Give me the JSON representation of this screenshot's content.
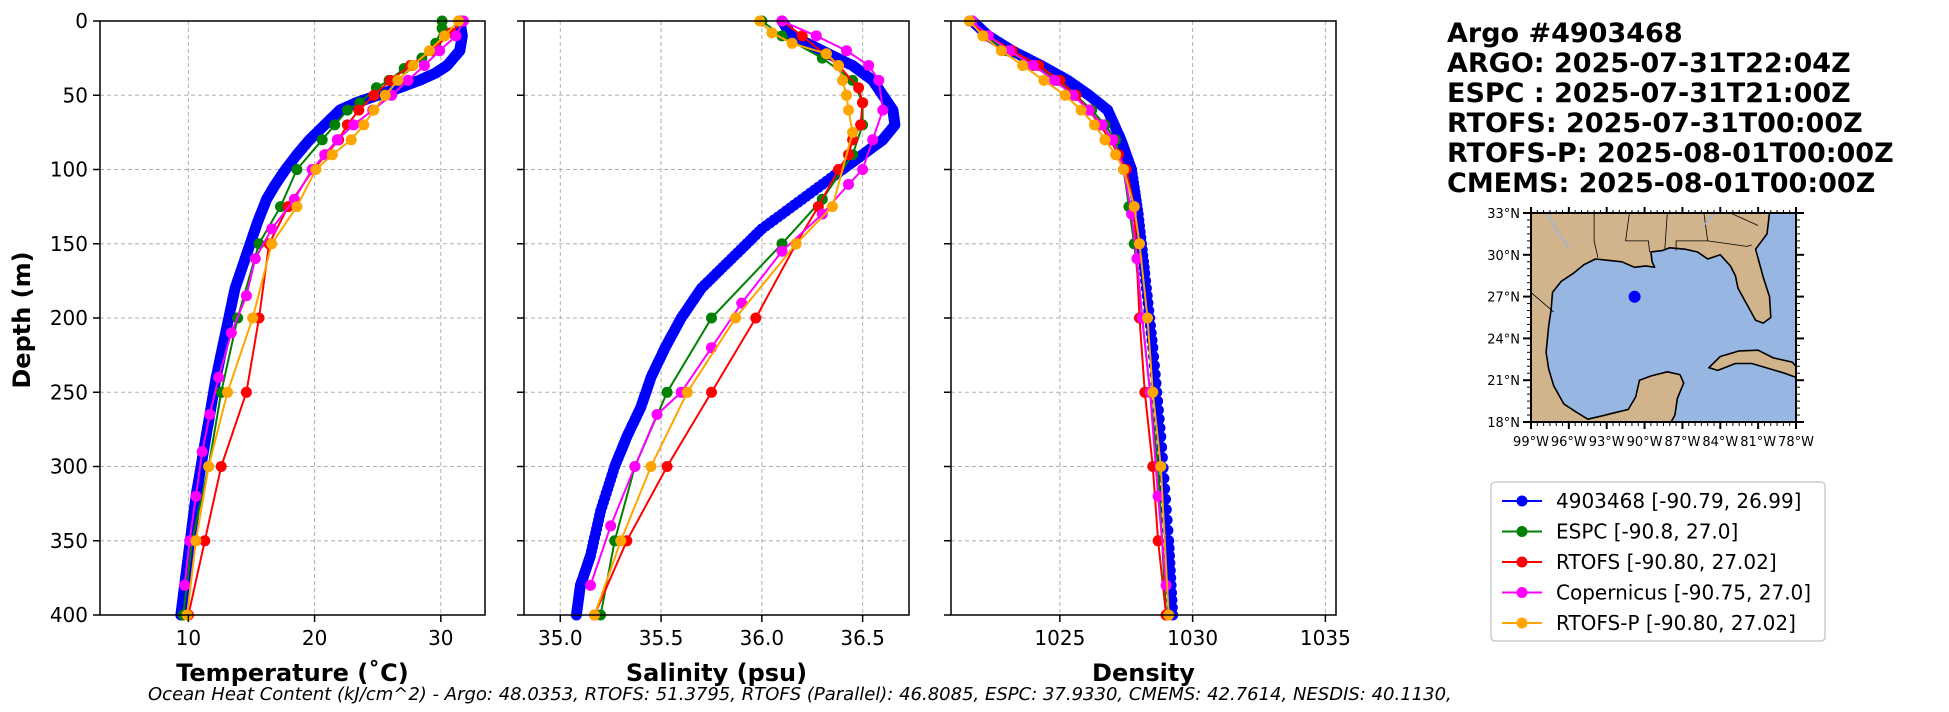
{
  "title_lines": [
    "Argo #4903468",
    "ARGO: 2025-07-31T22:04Z",
    "ESPC : 2025-07-31T21:00Z",
    "RTOFS: 2025-07-31T00:00Z",
    "RTOFS-P: 2025-08-01T00:00Z",
    "CMEMS: 2025-08-01T00:00Z"
  ],
  "footer": "Ocean Heat Content (kJ/cm^2) - Argo: 48.0353,  RTOFS: 51.3795,  RTOFS (Parallel): 46.8085,  ESPC: 37.9330,  CMEMS: 42.7614,  NESDIS: 40.1130,",
  "colors": {
    "argo": "#0000ff",
    "espc": "#008000",
    "rtofs": "#ff0000",
    "copernicus": "#ff00ff",
    "rtofs_p": "#ffa500",
    "ocean": "#98b6e2",
    "land": "#d2b48c"
  },
  "chart_data": [
    {
      "type": "line",
      "title": "",
      "xlabel": "Temperature (˚C)",
      "ylabel": "Depth (m)",
      "xlim": [
        3,
        33.5
      ],
      "ylim": [
        400,
        0
      ],
      "xticks": [
        "10",
        "20",
        "30"
      ],
      "xtick_values": [
        10,
        20,
        30
      ],
      "yticks": [
        "0",
        "50",
        "100",
        "150",
        "200",
        "250",
        "300",
        "350",
        "400"
      ],
      "ytick_values": [
        0,
        50,
        100,
        150,
        200,
        250,
        300,
        350,
        400
      ],
      "series": [
        {
          "name": "4903468 [-90.79, 26.99]",
          "color_key": "argo",
          "dense": true,
          "x": [
            31.5,
            31.7,
            31.5,
            30.5,
            29.6,
            28.3,
            26.7,
            25.0,
            23.3,
            22.0,
            20.8,
            19.6,
            18.6,
            17.7,
            16.9,
            16.2,
            15.5,
            14.9,
            14.3,
            13.7,
            13.2,
            12.7,
            12.2,
            11.8,
            11.4,
            11.0,
            10.6,
            10.3,
            10.0,
            9.7,
            9.4
          ],
          "y": [
            0,
            10,
            20,
            30,
            35,
            40,
            45,
            50,
            55,
            60,
            70,
            80,
            90,
            100,
            110,
            120,
            135,
            150,
            165,
            180,
            200,
            220,
            240,
            260,
            280,
            300,
            320,
            340,
            360,
            380,
            400
          ]
        },
        {
          "name": "ESPC [-90.8, 27.0]",
          "color_key": "espc",
          "x": [
            30.1,
            30.1,
            29.6,
            28.5,
            27.1,
            25.9,
            24.9,
            23.6,
            22.6,
            21.6,
            20.6,
            18.6,
            17.3,
            15.6,
            13.9,
            12.6,
            11.6,
            10.3,
            9.6
          ],
          "y": [
            0,
            5,
            15,
            25,
            32,
            40,
            45,
            55,
            60,
            70,
            80,
            100,
            125,
            150,
            200,
            250,
            300,
            350,
            400
          ]
        },
        {
          "name": "RTOFS [-90.80, 27.02]",
          "color_key": "rtofs",
          "x": [
            31.7,
            30.8,
            29.3,
            27.6,
            26.0,
            24.7,
            23.5,
            22.6,
            21.9,
            20.9,
            19.9,
            17.9,
            16.4,
            15.6,
            14.6,
            12.6,
            11.3,
            10.0
          ],
          "y": [
            0,
            8,
            20,
            30,
            40,
            50,
            60,
            70,
            80,
            90,
            100,
            125,
            150,
            200,
            250,
            300,
            350,
            400
          ]
        },
        {
          "name": "Copernicus [-90.75, 27.0]",
          "color_key": "copernicus",
          "x": [
            31.8,
            31.2,
            29.9,
            28.7,
            27.4,
            26.1,
            24.6,
            23.1,
            21.8,
            20.8,
            19.8,
            18.4,
            16.6,
            15.3,
            14.6,
            13.4,
            12.4,
            11.7,
            11.1,
            10.6,
            10.1,
            9.7
          ],
          "y": [
            0,
            10,
            20,
            30,
            40,
            50,
            60,
            70,
            80,
            90,
            100,
            120,
            140,
            160,
            185,
            210,
            240,
            265,
            290,
            320,
            350,
            380
          ]
        },
        {
          "name": "RTOFS-P [-90.80, 27.02]",
          "color_key": "rtofs_p",
          "x": [
            31.4,
            30.3,
            29.1,
            27.8,
            26.6,
            25.6,
            24.7,
            23.9,
            22.9,
            21.4,
            20.1,
            18.6,
            16.6,
            15.1,
            13.1,
            11.6,
            10.6,
            9.9
          ],
          "y": [
            0,
            10,
            20,
            30,
            40,
            50,
            60,
            70,
            80,
            90,
            100,
            125,
            150,
            200,
            250,
            300,
            350,
            400
          ]
        }
      ]
    },
    {
      "type": "line",
      "title": "",
      "xlabel": "Salinity (psu)",
      "ylabel": "",
      "xlim": [
        34.82,
        36.73
      ],
      "ylim": [
        400,
        0
      ],
      "xticks": [
        "35.0",
        "35.5",
        "36.0",
        "36.5"
      ],
      "xtick_values": [
        35.0,
        35.5,
        36.0,
        36.5
      ],
      "series": [
        {
          "name": "4903468 [-90.79, 26.99]",
          "color_key": "argo",
          "dense": true,
          "x": [
            36.1,
            36.15,
            36.3,
            36.45,
            36.55,
            36.6,
            36.65,
            36.66,
            36.6,
            36.5,
            36.4,
            36.2,
            36.0,
            35.85,
            35.7,
            35.6,
            35.52,
            35.45,
            35.4,
            35.33,
            35.27,
            35.2,
            35.15,
            35.1,
            35.08
          ],
          "y": [
            0,
            10,
            20,
            30,
            40,
            50,
            60,
            70,
            80,
            90,
            100,
            120,
            140,
            160,
            180,
            200,
            220,
            240,
            260,
            280,
            300,
            330,
            360,
            380,
            400
          ]
        },
        {
          "name": "ESPC [-90.8, 27.0]",
          "color_key": "espc",
          "x": [
            36.0,
            36.1,
            36.3,
            36.45,
            36.5,
            36.5,
            36.45,
            36.3,
            36.1,
            35.75,
            35.53,
            35.37,
            35.27,
            35.2
          ],
          "y": [
            0,
            10,
            25,
            40,
            55,
            70,
            90,
            120,
            150,
            200,
            250,
            300,
            350,
            400
          ]
        },
        {
          "name": "RTOFS [-90.80, 27.02]",
          "color_key": "rtofs",
          "x": [
            36.1,
            36.2,
            36.38,
            36.48,
            36.5,
            36.49,
            36.45,
            36.43,
            36.38,
            36.28,
            36.17,
            35.97,
            35.75,
            35.53,
            35.33,
            35.17
          ],
          "y": [
            0,
            10,
            30,
            45,
            55,
            70,
            80,
            90,
            100,
            125,
            150,
            200,
            250,
            300,
            350,
            400
          ]
        },
        {
          "name": "Copernicus [-90.75, 27.0]",
          "color_key": "copernicus",
          "x": [
            36.1,
            36.27,
            36.42,
            36.53,
            36.58,
            36.6,
            36.55,
            36.5,
            36.43,
            36.3,
            36.1,
            35.9,
            35.75,
            35.6,
            35.48,
            35.37,
            35.25,
            35.15
          ],
          "y": [
            0,
            10,
            20,
            30,
            40,
            60,
            80,
            100,
            110,
            130,
            155,
            190,
            220,
            250,
            265,
            300,
            340,
            380
          ]
        },
        {
          "name": "RTOFS-P [-90.80, 27.02]",
          "color_key": "rtofs_p",
          "x": [
            35.99,
            36.05,
            36.15,
            36.32,
            36.38,
            36.4,
            36.42,
            36.43,
            36.45,
            36.35,
            36.17,
            35.87,
            35.63,
            35.45,
            35.3,
            35.17
          ],
          "y": [
            0,
            8,
            15,
            22,
            30,
            40,
            50,
            60,
            75,
            125,
            150,
            200,
            250,
            300,
            350,
            400
          ]
        }
      ]
    },
    {
      "type": "line",
      "title": "",
      "xlabel": "Density",
      "ylabel": "",
      "xlim": [
        1020.9,
        1035.4
      ],
      "ylim": [
        400,
        0
      ],
      "xticks": [
        "1025",
        "1030",
        "1035"
      ],
      "xtick_values": [
        1025,
        1030,
        1035
      ],
      "series": [
        {
          "name": "4903468 [-90.79, 26.99]",
          "color_key": "argo",
          "dense": true,
          "x": [
            1021.7,
            1022.3,
            1023.2,
            1024.3,
            1025.3,
            1026.1,
            1026.8,
            1027.3,
            1027.7,
            1027.95,
            1028.2,
            1028.5,
            1028.8,
            1029.1,
            1029.25
          ],
          "y": [
            0,
            10,
            20,
            30,
            40,
            50,
            60,
            80,
            100,
            130,
            170,
            220,
            280,
            350,
            400
          ]
        },
        {
          "name": "ESPC [-90.8, 27.0]",
          "color_key": "espc",
          "x": [
            1021.6,
            1022.2,
            1023.0,
            1024.0,
            1024.9,
            1025.6,
            1026.2,
            1026.7,
            1027.1,
            1027.4,
            1027.6,
            1027.8,
            1028.1,
            1028.4,
            1028.7,
            1029.0
          ],
          "y": [
            0,
            10,
            20,
            30,
            40,
            50,
            60,
            70,
            80,
            100,
            125,
            150,
            200,
            250,
            300,
            400
          ]
        },
        {
          "name": "RTOFS [-90.80, 27.02]",
          "color_key": "rtofs",
          "x": [
            1021.6,
            1022.3,
            1023.2,
            1024.2,
            1025.0,
            1025.6,
            1026.1,
            1026.5,
            1026.9,
            1027.2,
            1027.5,
            1027.8,
            1028.0,
            1028.2,
            1028.5,
            1028.7,
            1029.0
          ],
          "y": [
            0,
            10,
            20,
            30,
            40,
            50,
            60,
            70,
            80,
            90,
            100,
            125,
            200,
            250,
            300,
            350,
            400
          ]
        },
        {
          "name": "Copernicus [-90.75, 27.0]",
          "color_key": "copernicus",
          "x": [
            1021.7,
            1022.3,
            1023.1,
            1024.0,
            1024.8,
            1025.5,
            1026.1,
            1026.6,
            1027.0,
            1027.4,
            1027.7,
            1027.9,
            1028.1,
            1028.4,
            1028.7,
            1029.0
          ],
          "y": [
            0,
            10,
            20,
            30,
            40,
            50,
            60,
            70,
            80,
            100,
            130,
            160,
            200,
            250,
            320,
            380
          ]
        },
        {
          "name": "RTOFS-P [-90.80, 27.02]",
          "color_key": "rtofs_p",
          "x": [
            1021.6,
            1022.1,
            1022.8,
            1023.6,
            1024.4,
            1025.2,
            1025.8,
            1026.3,
            1026.7,
            1027.1,
            1027.4,
            1027.8,
            1028.0,
            1028.3,
            1028.5,
            1028.8,
            1029.1
          ],
          "y": [
            0,
            10,
            20,
            30,
            40,
            50,
            60,
            70,
            80,
            90,
            100,
            125,
            150,
            200,
            250,
            300,
            400
          ]
        }
      ]
    }
  ],
  "map": {
    "lat_labels": [
      "33°N",
      "30°N",
      "27°N",
      "24°N",
      "21°N",
      "18°N"
    ],
    "lon_labels": [
      "99°W",
      "96°W",
      "93°W",
      "90°W",
      "87°W",
      "84°W",
      "81°W",
      "78°W"
    ],
    "lon_range": [
      -99,
      -78
    ],
    "lat_range": [
      18,
      33
    ],
    "marker": {
      "lon": -90.79,
      "lat": 26.99
    }
  },
  "legend": [
    {
      "label": "4903468 [-90.79, 26.99]",
      "color_key": "argo"
    },
    {
      "label": "ESPC [-90.8, 27.0]",
      "color_key": "espc"
    },
    {
      "label": "RTOFS [-90.80, 27.02]",
      "color_key": "rtofs"
    },
    {
      "label": "Copernicus [-90.75, 27.0]",
      "color_key": "copernicus"
    },
    {
      "label": "RTOFS-P [-90.80, 27.02]",
      "color_key": "rtofs_p"
    }
  ]
}
